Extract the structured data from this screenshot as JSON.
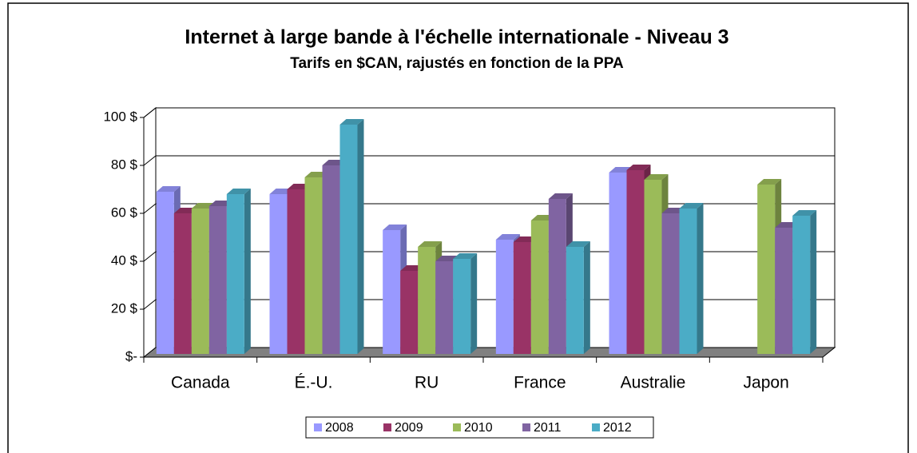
{
  "chart_data": {
    "type": "bar",
    "title": "Internet à large bande à l'échelle internationale - Niveau 3",
    "subtitle": "Tarifs en $CAN, rajustés en fonction de la PPA",
    "categories": [
      "Canada",
      "É.-U.",
      "RU",
      "France",
      "Australie",
      "Japon"
    ],
    "series": [
      {
        "name": "2008",
        "color": "#9999ff",
        "values": [
          69,
          68,
          53,
          49,
          77,
          null
        ]
      },
      {
        "name": "2009",
        "color": "#993366",
        "values": [
          60,
          70,
          36,
          48,
          78,
          null
        ]
      },
      {
        "name": "2010",
        "color": "#9bbb59",
        "values": [
          62,
          75,
          46,
          57,
          74,
          72
        ]
      },
      {
        "name": "2011",
        "color": "#8064a2",
        "values": [
          63,
          80,
          40,
          66,
          60,
          54
        ]
      },
      {
        "name": "2012",
        "color": "#4bacc6",
        "values": [
          68,
          97,
          41,
          46,
          62,
          59
        ]
      }
    ],
    "ylim": [
      0,
      100
    ],
    "yticks": [
      {
        "value": 0,
        "label": "$-"
      },
      {
        "value": 20,
        "label": "20 $"
      },
      {
        "value": 40,
        "label": "40 $"
      },
      {
        "value": 60,
        "label": "60 $"
      },
      {
        "value": 80,
        "label": "80 $"
      },
      {
        "value": 100,
        "label": "100 $"
      }
    ],
    "grid": true,
    "legend": "bottom"
  }
}
